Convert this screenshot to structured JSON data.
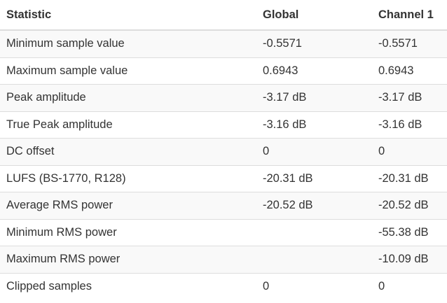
{
  "table": {
    "headers": [
      "Statistic",
      "Global",
      "Channel 1"
    ],
    "rows": [
      [
        "Minimum sample value",
        "-0.5571",
        "-0.5571"
      ],
      [
        "Maximum sample value",
        "0.6943",
        "0.6943"
      ],
      [
        "Peak amplitude",
        "-3.17 dB",
        "-3.17 dB"
      ],
      [
        "True Peak amplitude",
        "-3.16 dB",
        "-3.16 dB"
      ],
      [
        "DC offset",
        "0",
        "0"
      ],
      [
        "LUFS (BS-1770, R128)",
        "-20.31 dB",
        "-20.31 dB"
      ],
      [
        "Average RMS power",
        "-20.52 dB",
        "-20.52 dB"
      ],
      [
        "Minimum RMS power",
        "",
        "-55.38 dB"
      ],
      [
        "Maximum RMS power",
        "",
        "-10.09 dB"
      ],
      [
        "Clipped samples",
        "0",
        "0"
      ]
    ]
  }
}
